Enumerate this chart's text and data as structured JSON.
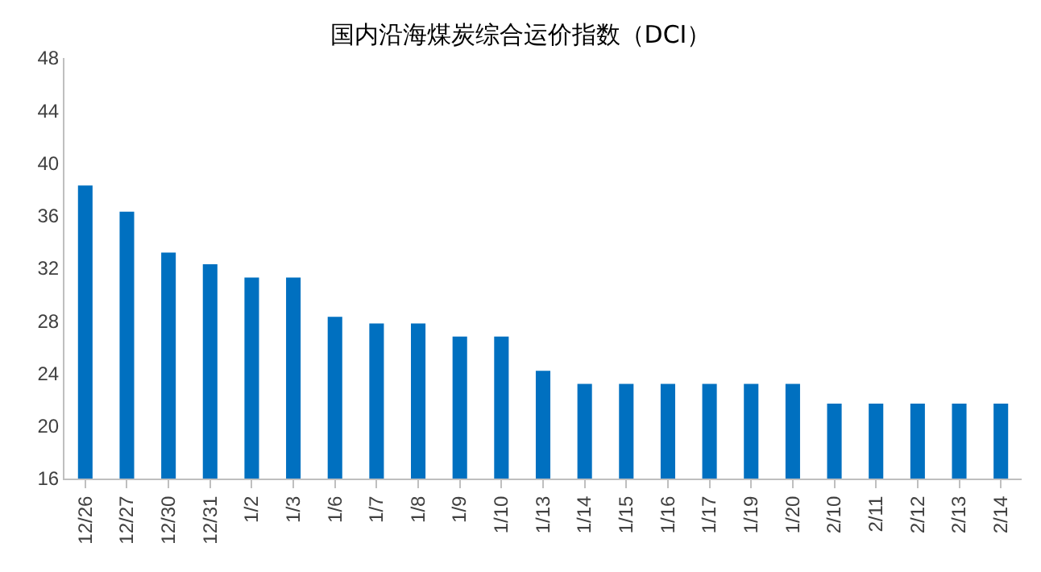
{
  "chart_data": {
    "type": "bar",
    "title": "国内沿海煤炭综合运价指数（DCI）",
    "categories": [
      "12/26",
      "12/27",
      "12/30",
      "12/31",
      "1/2",
      "1/3",
      "1/6",
      "1/7",
      "1/8",
      "1/9",
      "1/10",
      "1/13",
      "1/14",
      "1/15",
      "1/16",
      "1/17",
      "1/19",
      "1/20",
      "2/10",
      "2/11",
      "2/12",
      "2/13",
      "2/14"
    ],
    "values": [
      38.3,
      36.3,
      33.2,
      32.3,
      31.3,
      31.3,
      28.3,
      27.8,
      27.8,
      26.8,
      26.8,
      24.2,
      23.2,
      23.2,
      23.2,
      23.2,
      23.2,
      23.2,
      21.7,
      21.7,
      21.7,
      21.7,
      21.7
    ],
    "color": "#0070c0",
    "ylim": [
      16,
      48
    ],
    "yticks": [
      16,
      20,
      24,
      28,
      32,
      36,
      40,
      44,
      48
    ],
    "grid": false
  }
}
